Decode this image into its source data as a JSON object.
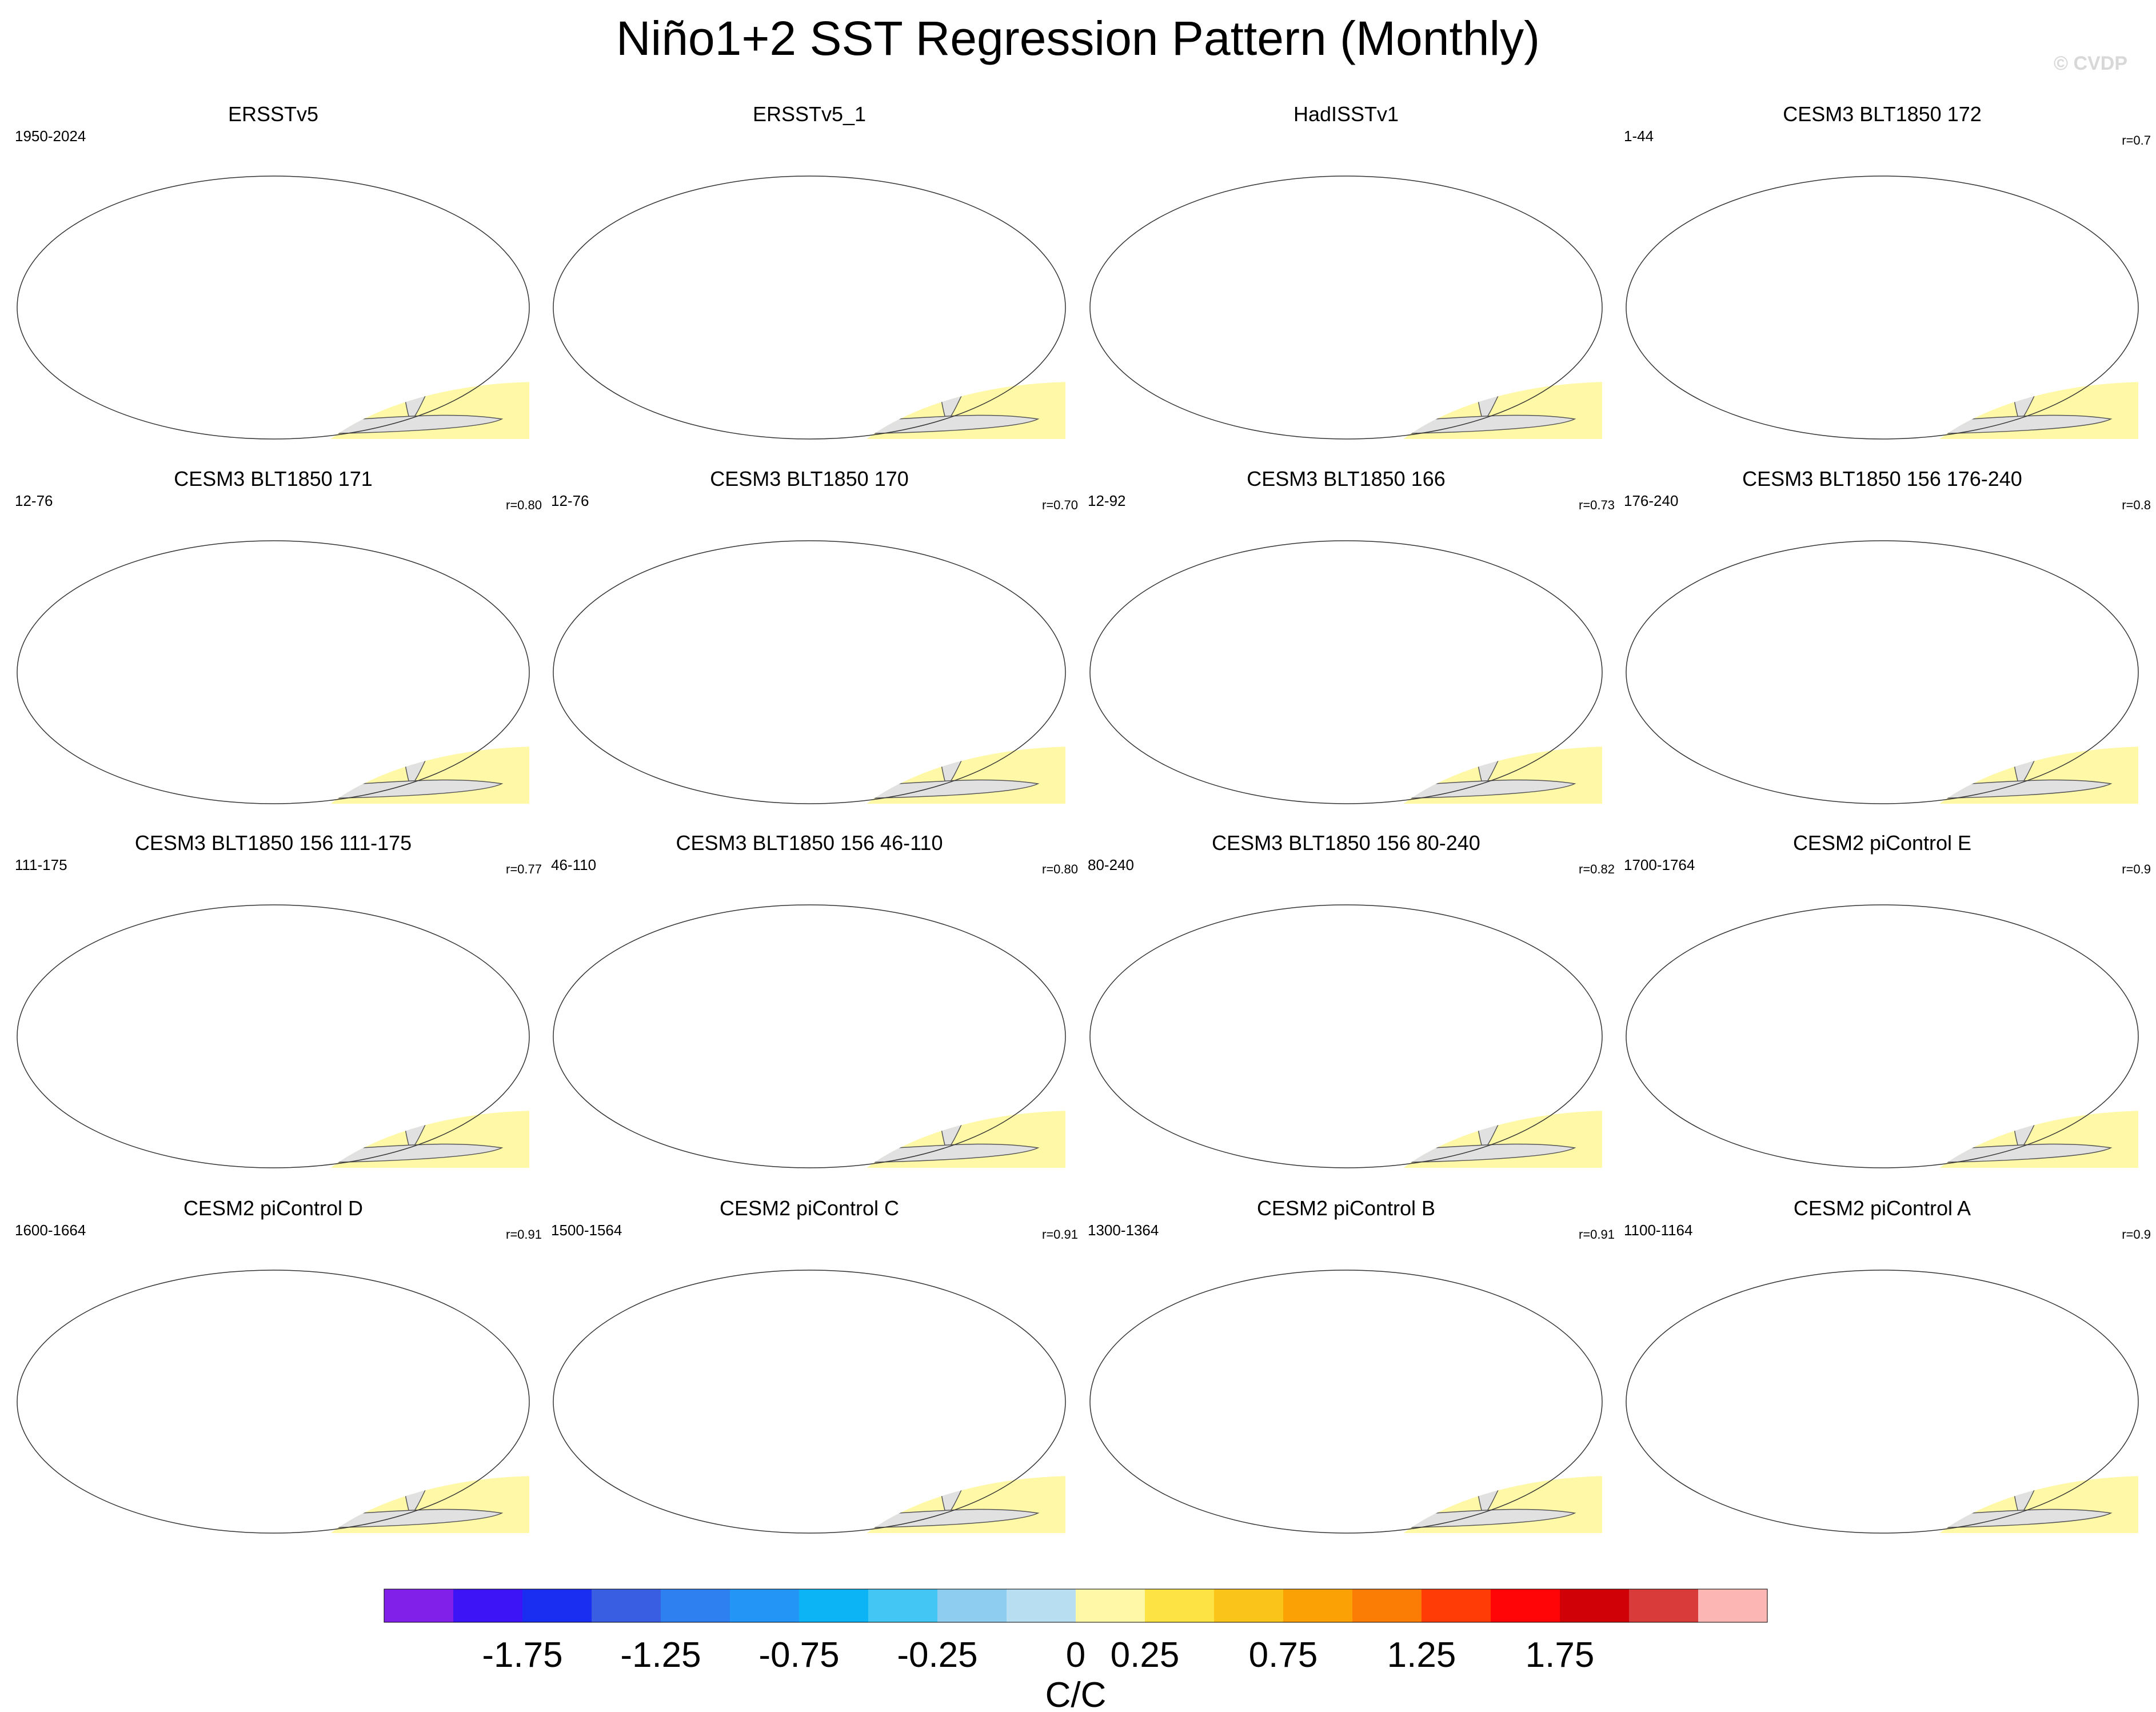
{
  "title": "Niño1+2 SST Regression Pattern (Monthly)",
  "watermark": "© CVDP",
  "panels": [
    {
      "title": "ERSSTv5",
      "years": "1950-2024",
      "corr": "",
      "style": "obs"
    },
    {
      "title": "ERSSTv5_1",
      "years": "",
      "corr": "",
      "style": "obs"
    },
    {
      "title": "HadISSTv1",
      "years": "",
      "corr": "",
      "style": "obs"
    },
    {
      "title": "CESM3 BLT1850 172",
      "years": "1-44",
      "corr": "r=0.7",
      "style": "cesm3"
    },
    {
      "title": "CESM3 BLT1850 171",
      "years": "12-76",
      "corr": "r=0.80",
      "style": "cesm3"
    },
    {
      "title": "CESM3 BLT1850 170",
      "years": "12-76",
      "corr": "r=0.70",
      "style": "cesm3"
    },
    {
      "title": "CESM3 BLT1850 166",
      "years": "12-92",
      "corr": "r=0.73",
      "style": "cesm3"
    },
    {
      "title": "CESM3 BLT1850 156 176-240",
      "years": "176-240",
      "corr": "r=0.8",
      "style": "cesm3"
    },
    {
      "title": "CESM3 BLT1850 156 111-175",
      "years": "111-175",
      "corr": "r=0.77",
      "style": "cesm3"
    },
    {
      "title": "CESM3 BLT1850 156 46-110",
      "years": "46-110",
      "corr": "r=0.80",
      "style": "cesm3"
    },
    {
      "title": "CESM3 BLT1850 156 80-240",
      "years": "80-240",
      "corr": "r=0.82",
      "style": "cesm3"
    },
    {
      "title": "CESM2 piControl E",
      "years": "1700-1764",
      "corr": "r=0.9",
      "style": "cesm2"
    },
    {
      "title": "CESM2 piControl D",
      "years": "1600-1664",
      "corr": "r=0.91",
      "style": "cesm2"
    },
    {
      "title": "CESM2 piControl C",
      "years": "1500-1564",
      "corr": "r=0.91",
      "style": "cesm2"
    },
    {
      "title": "CESM2 piControl B",
      "years": "1300-1364",
      "corr": "r=0.91",
      "style": "cesm2"
    },
    {
      "title": "CESM2 piControl A",
      "years": "1100-1164",
      "corr": "r=0.9",
      "style": "cesm2"
    }
  ],
  "colors": {
    "land": "#e1e1e1",
    "coast": "#555555",
    "scale": [
      "#8020e8",
      "#3d14f5",
      "#1a2ef2",
      "#3a5ee2",
      "#2e7ff0",
      "#2295f7",
      "#0db4f5",
      "#44c6f5",
      "#8ecdef",
      "#b8def2",
      "#fff8a6",
      "#fde444",
      "#fbc41a",
      "#fba105",
      "#fb7d06",
      "#ff3c06",
      "#ff0508",
      "#d00207",
      "#d93b3b",
      "#fcb6b4"
    ]
  },
  "chart_data": {
    "type": "heatmap",
    "projection": "Robinson, Pacific-centered",
    "colorbar": {
      "tick_labels": [
        "-1.75",
        "-1.25",
        "-0.75",
        "-0.25",
        "0",
        "0.25",
        "0.75",
        "1.25",
        "1.75"
      ],
      "tick_levels": [
        -1.75,
        -1.25,
        -0.75,
        -0.25,
        0,
        0.25,
        0.75,
        1.25,
        1.75
      ],
      "units": "C/C",
      "num_bins": 20
    }
  }
}
